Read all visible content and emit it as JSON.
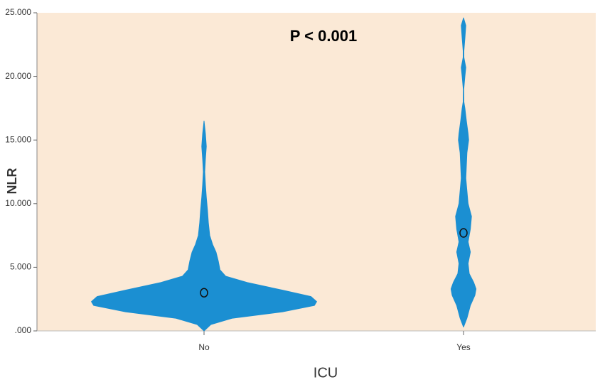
{
  "chart_data": {
    "type": "violin",
    "annotation": "P < 0.001",
    "x_label": "ICU",
    "y_label": "NLR",
    "categories": [
      "No",
      "Yes"
    ],
    "color": "#1b8fd2",
    "background": "#fbe9d6",
    "ylim": [
      0,
      25
    ],
    "yticks": [
      {
        "value": 0,
        "label": ".000"
      },
      {
        "value": 5,
        "label": "5.000"
      },
      {
        "value": 10,
        "label": "10.000"
      },
      {
        "value": 15,
        "label": "15.000"
      },
      {
        "value": 20,
        "label": "20.000"
      },
      {
        "value": 25,
        "label": "25.000"
      }
    ],
    "series": [
      {
        "name": "No",
        "center": 3.0,
        "y": [
          0,
          0.5,
          1.0,
          1.5,
          2.0,
          2.3,
          2.7,
          3.2,
          3.8,
          4.3,
          4.8,
          5.5,
          6.2,
          6.8,
          7.5,
          8.5,
          9.5,
          10.5,
          11.5,
          12.5,
          13.5,
          14.5,
          15.5,
          16.5
        ],
        "density": [
          0,
          6,
          25,
          69,
          97,
          99,
          94,
          69,
          38,
          19,
          14,
          12.5,
          10.5,
          7.5,
          5,
          3.8,
          3,
          2,
          1.2,
          0.6,
          1.2,
          2,
          1.2,
          0
        ]
      },
      {
        "name": "Yes",
        "center": 7.7,
        "y": [
          0.3,
          1,
          2,
          2.8,
          3.3,
          3.8,
          4.5,
          5.3,
          6.2,
          7,
          8,
          9,
          10,
          11,
          12,
          13,
          14,
          15,
          15.5,
          16.5,
          17.5,
          18,
          19,
          20,
          20.7,
          21.5,
          22,
          23,
          24,
          24.6
        ],
        "density": [
          0,
          3,
          6,
          10,
          11,
          9,
          5,
          4,
          6,
          4,
          6,
          7,
          4,
          3,
          2,
          2.5,
          3,
          4.5,
          4,
          2.5,
          1.2,
          0.3,
          0.2,
          1.2,
          2,
          0.3,
          0.3,
          1.2,
          2,
          0
        ]
      }
    ]
  }
}
